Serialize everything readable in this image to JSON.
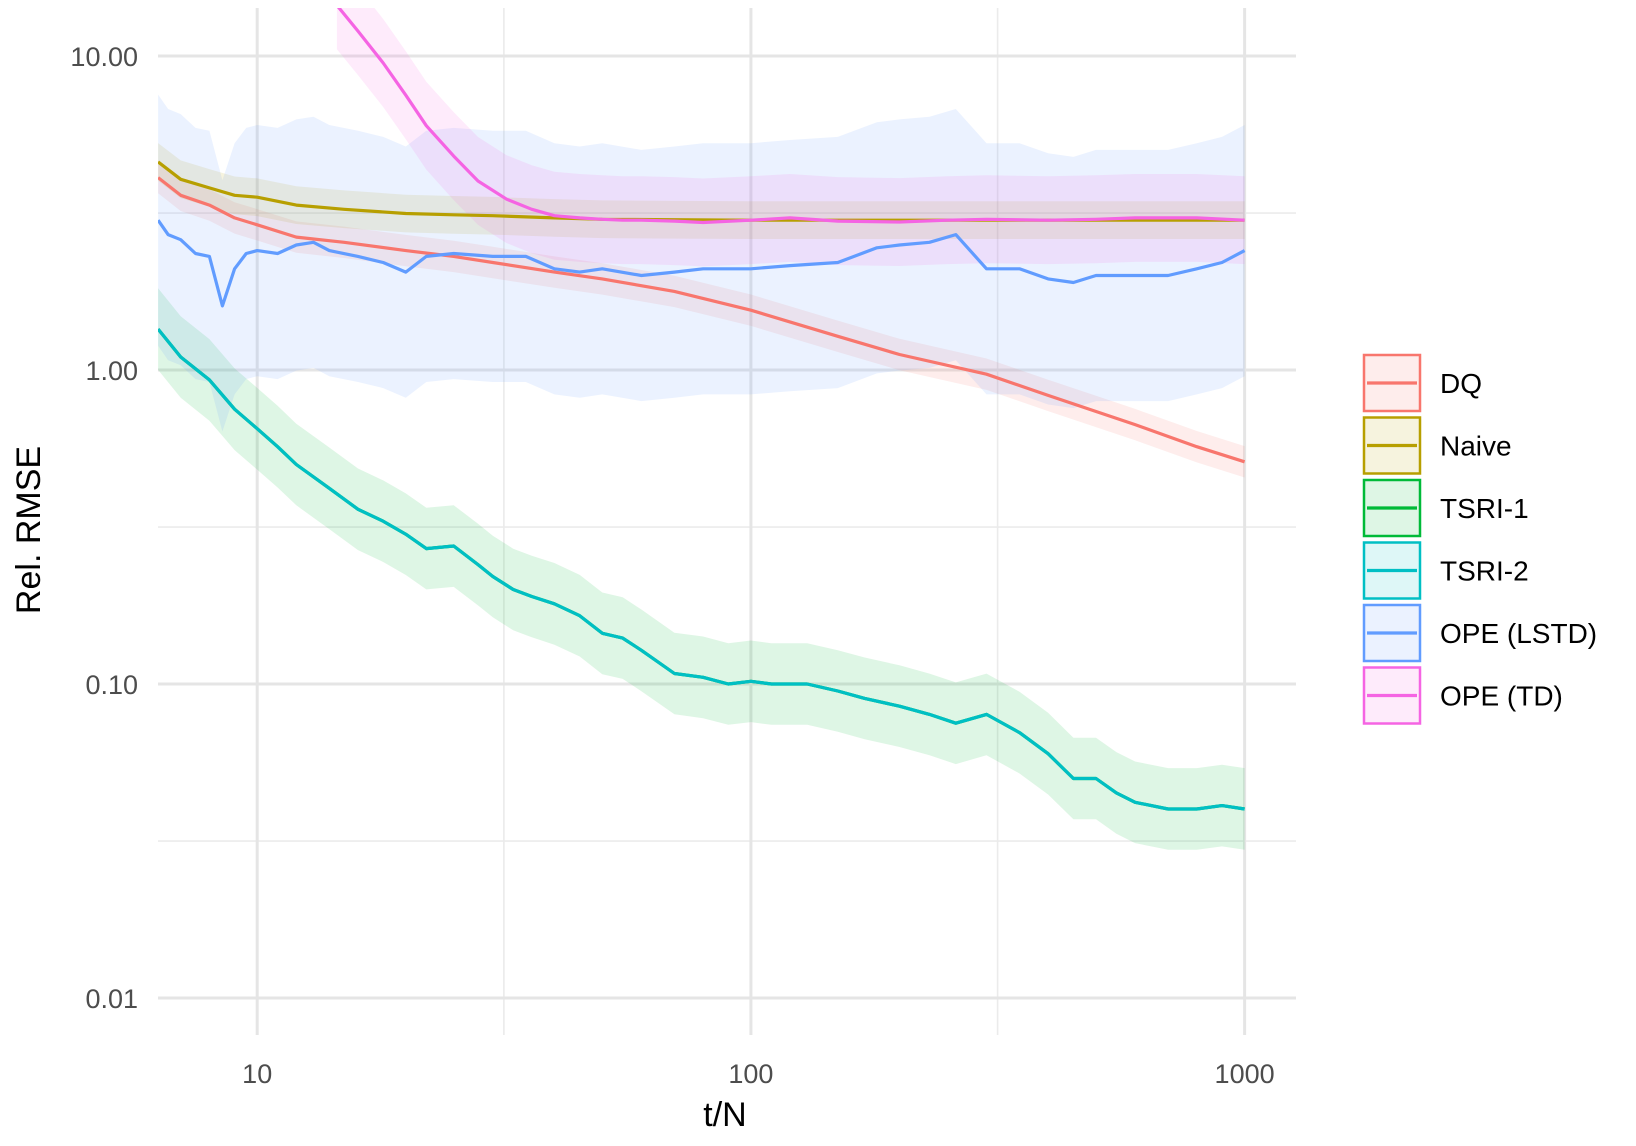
{
  "chart_data": {
    "type": "line",
    "xlabel": "t/N",
    "ylabel": "Rel. RMSE",
    "x_scale": "log10",
    "y_scale": "log10",
    "xlim": [
      6.3,
      1200
    ],
    "ylim": [
      0.0075,
      14.5
    ],
    "grid": true,
    "legend_position": "right",
    "x_ticks": [
      {
        "value": 10,
        "label": "10"
      },
      {
        "value": 100,
        "label": "100"
      },
      {
        "value": 1000,
        "label": "1000"
      }
    ],
    "x_minor_ticks": [
      31.6,
      316
    ],
    "y_ticks": [
      {
        "value": 10,
        "label": "10.00"
      },
      {
        "value": 1,
        "label": "1.00"
      },
      {
        "value": 0.1,
        "label": "0.10"
      },
      {
        "value": 0.01,
        "label": "0.01"
      }
    ],
    "y_minor_ticks": [
      3.16,
      0.316,
      0.0316
    ],
    "series": [
      {
        "name": "DQ",
        "color": "#F8766D",
        "ribbon": 0.05,
        "x": [
          6.3,
          7,
          8,
          9,
          10,
          12,
          15,
          20,
          25,
          30,
          40,
          50,
          70,
          100,
          150,
          200,
          300,
          400,
          600,
          800,
          1000
        ],
        "y": [
          4.1,
          3.6,
          3.35,
          3.05,
          2.9,
          2.65,
          2.55,
          2.4,
          2.3,
          2.2,
          2.05,
          1.95,
          1.78,
          1.55,
          1.28,
          1.12,
          0.97,
          0.83,
          0.67,
          0.57,
          0.51
        ]
      },
      {
        "name": "Naive",
        "color": "#B79F00",
        "ribbon": 0.06,
        "x": [
          6.3,
          7,
          8,
          9,
          10,
          12,
          15,
          20,
          25,
          30,
          40,
          50,
          70,
          100,
          150,
          200,
          300,
          400,
          600,
          800,
          1000
        ],
        "y": [
          4.6,
          4.05,
          3.8,
          3.6,
          3.55,
          3.35,
          3.25,
          3.15,
          3.12,
          3.1,
          3.05,
          3.02,
          3.01,
          3.0,
          3.0,
          3.0,
          3.0,
          3.0,
          3.0,
          3.0,
          3.0
        ]
      },
      {
        "name": "TSRI-1",
        "color": "#00BA38",
        "ribbon": 0.13,
        "x": [
          6.3,
          7,
          8,
          9,
          10,
          11,
          12,
          14,
          16,
          18,
          20,
          22,
          25,
          28,
          30,
          33,
          36,
          40,
          45,
          50,
          55,
          60,
          70,
          80,
          90,
          100,
          110,
          130,
          150,
          170,
          200,
          230,
          260,
          300,
          350,
          400,
          450,
          500,
          550,
          600,
          700,
          800,
          900,
          1000
        ],
        "y": [
          1.35,
          1.1,
          0.93,
          0.75,
          0.65,
          0.57,
          0.5,
          0.42,
          0.36,
          0.33,
          0.3,
          0.27,
          0.275,
          0.24,
          0.22,
          0.2,
          0.19,
          0.18,
          0.165,
          0.145,
          0.14,
          0.128,
          0.108,
          0.105,
          0.1,
          0.102,
          0.1,
          0.1,
          0.095,
          0.09,
          0.085,
          0.08,
          0.075,
          0.08,
          0.07,
          0.06,
          0.05,
          0.05,
          0.045,
          0.042,
          0.04,
          0.04,
          0.041,
          0.04
        ]
      },
      {
        "name": "TSRI-2",
        "color": "#00BFC4",
        "ribbon": 0,
        "x": [
          6.3,
          7,
          8,
          9,
          10,
          11,
          12,
          14,
          16,
          18,
          20,
          22,
          25,
          28,
          30,
          33,
          36,
          40,
          45,
          50,
          55,
          60,
          70,
          80,
          90,
          100,
          110,
          130,
          150,
          170,
          200,
          230,
          260,
          300,
          350,
          400,
          450,
          500,
          550,
          600,
          700,
          800,
          900,
          1000
        ],
        "y": [
          1.35,
          1.1,
          0.93,
          0.75,
          0.65,
          0.57,
          0.5,
          0.42,
          0.36,
          0.33,
          0.3,
          0.27,
          0.275,
          0.24,
          0.22,
          0.2,
          0.19,
          0.18,
          0.165,
          0.145,
          0.14,
          0.128,
          0.108,
          0.105,
          0.1,
          0.102,
          0.1,
          0.1,
          0.095,
          0.09,
          0.085,
          0.08,
          0.075,
          0.08,
          0.07,
          0.06,
          0.05,
          0.05,
          0.045,
          0.042,
          0.04,
          0.04,
          0.041,
          0.04
        ]
      },
      {
        "name": "OPE (LSTD)",
        "color": "#619CFF",
        "ribbon": 0.4,
        "x": [
          6.3,
          6.6,
          7,
          7.5,
          8,
          8.5,
          9,
          9.5,
          10,
          11,
          12,
          13,
          14,
          16,
          18,
          20,
          22,
          25,
          30,
          35,
          40,
          45,
          50,
          60,
          70,
          80,
          100,
          120,
          150,
          180,
          200,
          230,
          260,
          300,
          350,
          400,
          450,
          500,
          600,
          700,
          800,
          900,
          1000
        ],
        "y": [
          3.0,
          2.7,
          2.6,
          2.35,
          2.3,
          1.6,
          2.1,
          2.35,
          2.4,
          2.35,
          2.5,
          2.55,
          2.4,
          2.3,
          2.2,
          2.05,
          2.3,
          2.35,
          2.3,
          2.3,
          2.1,
          2.05,
          2.1,
          2.0,
          2.05,
          2.1,
          2.1,
          2.15,
          2.2,
          2.45,
          2.5,
          2.55,
          2.7,
          2.1,
          2.1,
          1.95,
          1.9,
          2.0,
          2.0,
          2.0,
          2.1,
          2.2,
          2.4
        ]
      },
      {
        "name": "OPE (TD)",
        "color": "#F564E3",
        "ribbon": 0.14,
        "x": [
          14.5,
          16,
          18,
          20,
          22,
          25,
          28,
          32,
          36,
          40,
          45,
          50,
          55,
          60,
          70,
          80,
          100,
          120,
          150,
          200,
          250,
          300,
          400,
          500,
          600,
          800,
          1000
        ],
        "y": [
          14.5,
          12,
          9.5,
          7.5,
          6.0,
          4.8,
          4.0,
          3.5,
          3.25,
          3.1,
          3.05,
          3.02,
          3.0,
          3.0,
          2.98,
          2.95,
          3.0,
          3.05,
          2.98,
          2.96,
          3.0,
          3.02,
          3.0,
          3.02,
          3.05,
          3.05,
          3.0
        ]
      }
    ]
  }
}
